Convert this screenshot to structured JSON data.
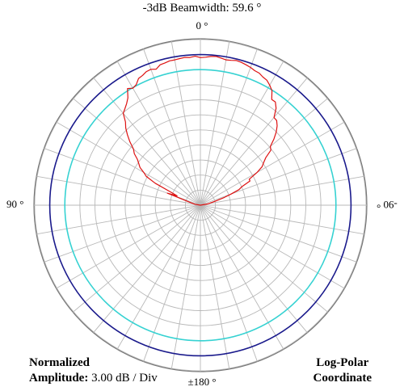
{
  "chart_data": {
    "type": "polar",
    "title": "-3dB Beamwidth: 59.6 °",
    "angle_labels": {
      "top": "0 °",
      "left": "90 °",
      "right": "-90 °",
      "bottom": "±180 °"
    },
    "footer_left": {
      "line1": "Normalized",
      "line2_label": "Amplitude:",
      "line2_value": "3.00 dB / Div"
    },
    "footer_right": {
      "line1": "Log-Polar",
      "line2": "Coordinate"
    },
    "scale_db_per_div": 3.0,
    "divisions": 10,
    "angular_grid_deg": 10,
    "reference_circles": [
      {
        "name": "0 dB",
        "level_db": 0,
        "color": "#1a1a8c"
      },
      {
        "name": "-3 dB",
        "level_db": -3,
        "color": "#36d2d2"
      }
    ],
    "pattern_color": "#dd1111",
    "pattern": {
      "angle_deg": [
        -90,
        -85,
        -80,
        -75,
        -70,
        -68,
        -66,
        -64,
        -62,
        -60,
        -58,
        -56,
        -54,
        -52,
        -50,
        -48,
        -46,
        -44,
        -42,
        -40,
        -38,
        -36,
        -34,
        -32,
        -30,
        -28,
        -26,
        -24,
        -22,
        -20,
        -18,
        -16,
        -14,
        -12,
        -10,
        -8,
        -6,
        -4,
        -2,
        0,
        2,
        4,
        6,
        8,
        10,
        12,
        14,
        16,
        18,
        20,
        22,
        24,
        26,
        28,
        30,
        32,
        34,
        36,
        38,
        40,
        42,
        44,
        46,
        48,
        50,
        52,
        54,
        56,
        58,
        60,
        62,
        64,
        66,
        68,
        70,
        72,
        75,
        80,
        85,
        90
      ],
      "gain_db": [
        -30,
        -30,
        -28.9,
        -28,
        -23,
        -25,
        -23.5,
        -20,
        -17.8,
        -17,
        -15.8,
        -15.2,
        -14.5,
        -13.3,
        -12.6,
        -11.1,
        -9.8,
        -8.6,
        -7.7,
        -6.1,
        -5.6,
        -5,
        -4.2,
        -2.6,
        -3.1,
        -2.8,
        -1.9,
        -1.7,
        -1.3,
        -1.2,
        -1.5,
        -0.9,
        -0.8,
        -0.6,
        -0.6,
        -0.5,
        -0.4,
        -0.5,
        -0.3,
        -0.6,
        -0.5,
        -0.3,
        -0.2,
        -0.4,
        -0.6,
        -0.5,
        -0.3,
        -0.4,
        -0.6,
        -0.8,
        -1.1,
        -1.2,
        -1.6,
        -1.8,
        -2.4,
        -3.1,
        -4.6,
        -4.6,
        -5.5,
        -7.2,
        -7.3,
        -8,
        -9,
        -10.3,
        -11.8,
        -12.2,
        -13.9,
        -14.8,
        -15.5,
        -17,
        -19,
        -19,
        -21,
        -21.7,
        -23.5,
        -25,
        -27,
        -28.5,
        -30,
        -30
      ]
    }
  }
}
